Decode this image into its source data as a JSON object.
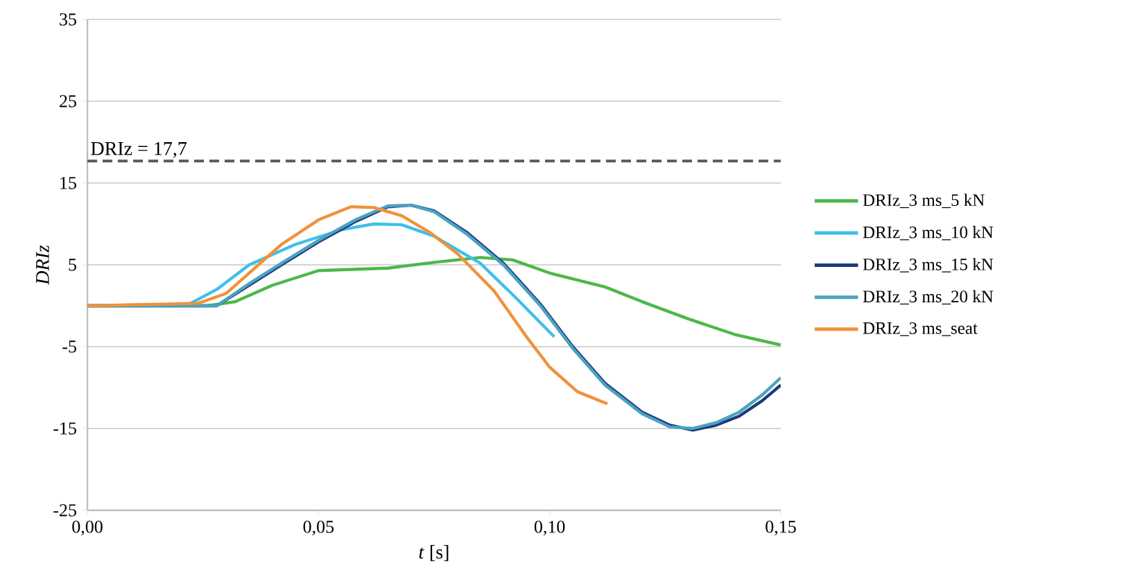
{
  "chart_data": {
    "type": "line",
    "xlabel": "*t* [s]",
    "ylabel": "DRIz",
    "xlim": [
      0,
      0.15
    ],
    "xticks": [
      {
        "value": 0,
        "label": "0,00"
      },
      {
        "value": 0.05,
        "label": "0,05"
      },
      {
        "value": 0.1,
        "label": "0,10"
      },
      {
        "value": 0.15,
        "label": "0,15"
      }
    ],
    "ylim": [
      -25,
      35
    ],
    "yticks": [
      -25,
      -15,
      -5,
      5,
      15,
      25,
      35
    ],
    "grid": "y",
    "legend": "right",
    "marker": "none",
    "line_style": "solid",
    "ref_lines": [
      {
        "axis": "y",
        "value": 17.7,
        "label": "DRIz = 17,7",
        "color": "#595959",
        "line_style": "dashed"
      }
    ],
    "series": [
      {
        "name": "DRIz_3 ms_5 kN",
        "color": "#4cb848",
        "x": [
          0,
          0.026,
          0.032,
          0.04,
          0.05,
          0.065,
          0.075,
          0.085,
          0.092,
          0.1,
          0.112,
          0.12,
          0.13,
          0.14,
          0.15
        ],
        "values": [
          0,
          0,
          0.5,
          2.5,
          4.3,
          4.6,
          5.3,
          5.9,
          5.6,
          4.0,
          2.3,
          0.5,
          -1.6,
          -3.5,
          -4.8
        ]
      },
      {
        "name": "DRIz_3 ms_10 kN",
        "color": "#3ec0ea",
        "x": [
          0,
          0.022,
          0.028,
          0.035,
          0.045,
          0.055,
          0.062,
          0.068,
          0.075,
          0.085,
          0.093,
          0.101
        ],
        "values": [
          0,
          0.2,
          2.0,
          5.0,
          7.5,
          9.3,
          10.0,
          9.9,
          8.5,
          5.2,
          0.8,
          -3.8
        ]
      },
      {
        "name": "DRIz_3 ms_15 kN",
        "color": "#1f3a7a",
        "x": [
          0,
          0.028,
          0.035,
          0.042,
          0.05,
          0.058,
          0.065,
          0.07,
          0.075,
          0.082,
          0.09,
          0.098,
          0.105,
          0.112,
          0.12,
          0.126,
          0.131,
          0.136,
          0.141,
          0.146,
          0.15
        ],
        "values": [
          0,
          0,
          2.5,
          5.0,
          7.8,
          10.3,
          12.1,
          12.3,
          11.6,
          9.0,
          5.2,
          0.2,
          -5.0,
          -9.5,
          -13.0,
          -14.6,
          -15.2,
          -14.6,
          -13.5,
          -11.6,
          -9.7
        ]
      },
      {
        "name": "DRIz_3 ms_20 kN",
        "color": "#4aa3c0",
        "x": [
          0,
          0.028,
          0.035,
          0.042,
          0.05,
          0.058,
          0.065,
          0.07,
          0.075,
          0.082,
          0.09,
          0.098,
          0.105,
          0.112,
          0.12,
          0.126,
          0.131,
          0.136,
          0.141,
          0.146,
          0.15
        ],
        "values": [
          0,
          0,
          2.7,
          5.2,
          8.0,
          10.5,
          12.2,
          12.3,
          11.5,
          8.8,
          5.0,
          0,
          -5.2,
          -9.7,
          -13.2,
          -14.8,
          -15.0,
          -14.3,
          -13.0,
          -10.9,
          -8.8
        ]
      },
      {
        "name": "DRIz_3 ms_seat",
        "color": "#f0923c",
        "x": [
          0,
          0.024,
          0.03,
          0.036,
          0.042,
          0.05,
          0.057,
          0.062,
          0.068,
          0.074,
          0.08,
          0.088,
          0.095,
          0.1,
          0.106,
          0.1125
        ],
        "values": [
          0,
          0.3,
          1.5,
          4.5,
          7.5,
          10.5,
          12.1,
          12.0,
          11.0,
          9.0,
          6.4,
          1.8,
          -3.8,
          -7.5,
          -10.5,
          -12.0
        ]
      }
    ]
  }
}
